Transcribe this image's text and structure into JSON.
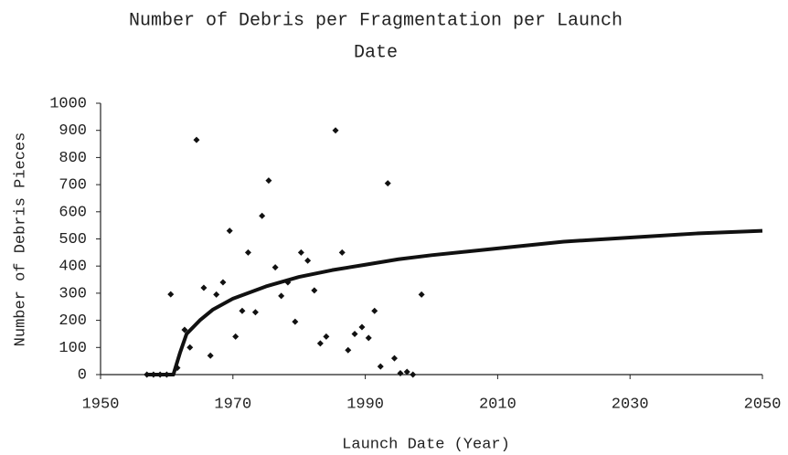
{
  "chart_data": {
    "type": "scatter",
    "title": [
      "Number of Debris per Fragmentation per Launch",
      "Date"
    ],
    "x_label": "Launch Date (Year)",
    "y_label": "Number of Debris Pieces",
    "xlim": [
      1950,
      2050
    ],
    "xticks": [
      1950,
      1970,
      1990,
      2010,
      2030,
      2050
    ],
    "ylim": [
      0,
      1000
    ],
    "yticks": [
      0,
      100,
      200,
      300,
      400,
      500,
      600,
      700,
      800,
      900,
      1000
    ],
    "series": [
      {
        "mode": "markers",
        "color": "#111111",
        "x": [
          1957,
          1958,
          1959,
          1960,
          1960.6,
          1961.6,
          1962.7,
          1963.5,
          1964.5,
          1965.6,
          1966.6,
          1967.5,
          1968.5,
          1969.5,
          1970.4,
          1971.4,
          1972.3,
          1973.4,
          1974.4,
          1975.4,
          1976.4,
          1977.3,
          1978.3,
          1979.4,
          1980.3,
          1981.3,
          1982.3,
          1983.2,
          1984.1,
          1985.5,
          1986.5,
          1987.4,
          1988.4,
          1989.5,
          1990.5,
          1991.4,
          1992.3,
          1993.4,
          1994.4,
          1995.3,
          1996.3,
          1997.2,
          1998.5
        ],
        "values": [
          0,
          0,
          0,
          0,
          296,
          25,
          165,
          100,
          865,
          320,
          70,
          295,
          340,
          530,
          140,
          235,
          450,
          230,
          585,
          715,
          395,
          290,
          340,
          195,
          450,
          420,
          310,
          115,
          140,
          900,
          450,
          90,
          150,
          175,
          135,
          235,
          30,
          705,
          60,
          5,
          10,
          0,
          295
        ]
      },
      {
        "mode": "line",
        "color": "#111111",
        "x": [
          1957,
          1961,
          1962,
          1963,
          1965,
          1967,
          1970,
          1975,
          1980,
          1985,
          1990,
          1995,
          2000,
          2010,
          2020,
          2030,
          2040,
          2050
        ],
        "values": [
          0,
          0,
          80,
          150,
          200,
          240,
          280,
          325,
          360,
          385,
          405,
          425,
          440,
          465,
          490,
          505,
          520,
          530
        ]
      }
    ]
  }
}
